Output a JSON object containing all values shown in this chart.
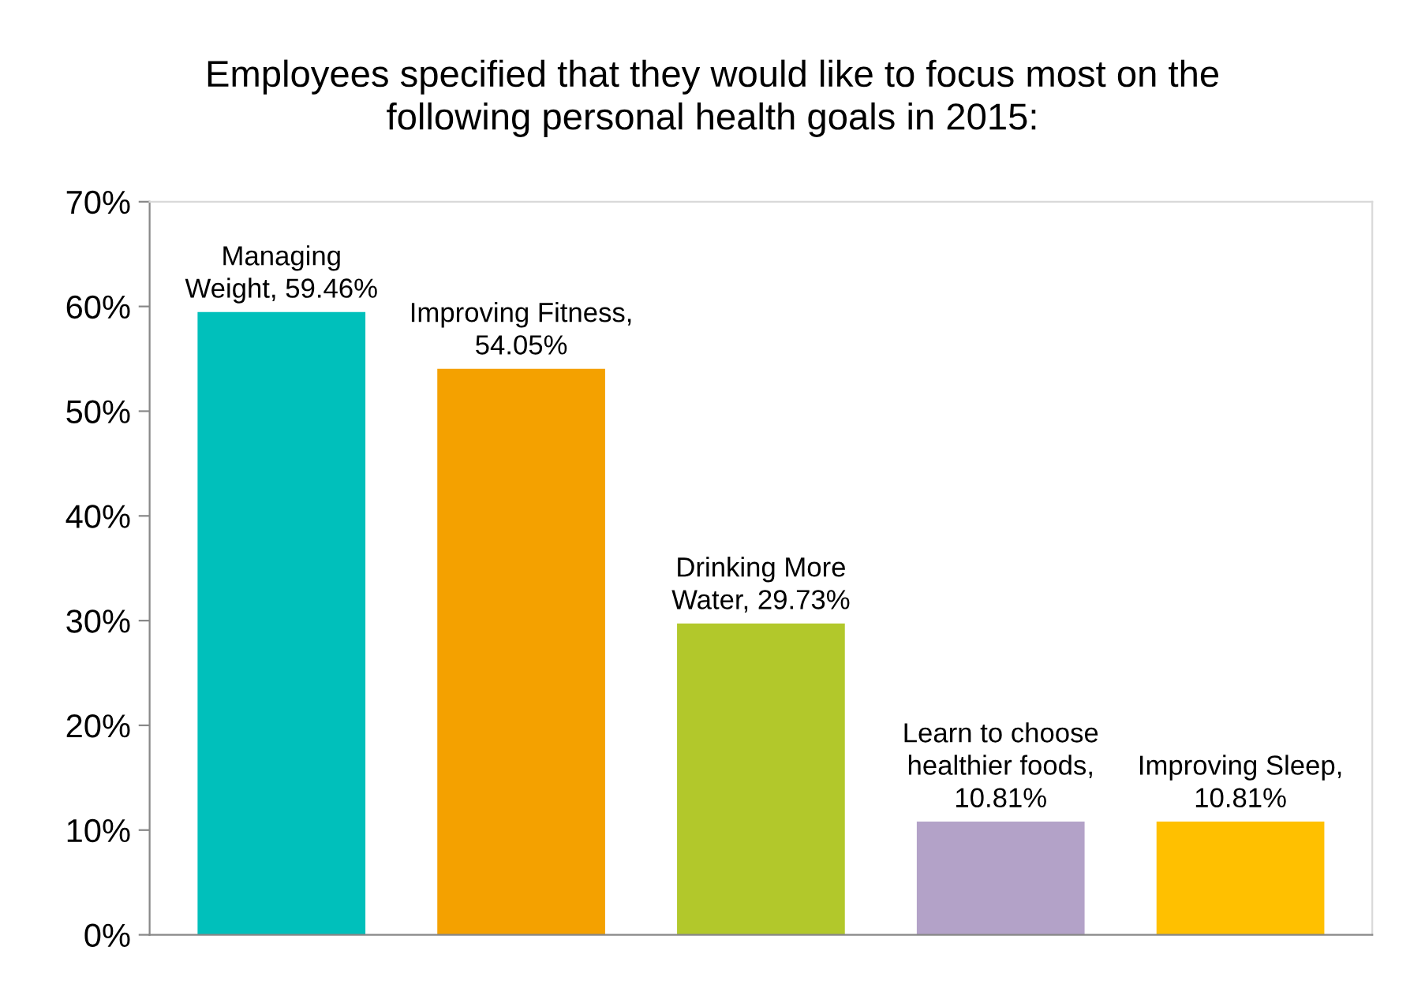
{
  "chart_data": {
    "type": "bar",
    "title": "Employees specified that they would like to focus most on the\nfollowing personal health goals in 2015:",
    "categories": [
      null,
      null,
      null,
      null,
      null
    ],
    "values": [
      59.46,
      54.05,
      29.73,
      10.81,
      10.81
    ],
    "colors": [
      "#00c0bb",
      "#f4a100",
      "#b2c82b",
      "#b3a2c8",
      "#ffc000"
    ],
    "value_labels": [
      "Managing\nWeight, 59.46%",
      "Improving Fitness,\n54.05%",
      "Drinking More\nWater, 29.73%",
      "Learn to choose\nhealthier foods,\n10.81%",
      "Improving Sleep,\n10.81%"
    ],
    "ylim": [
      0,
      70
    ],
    "yticks": [
      {
        "value": 0,
        "label": "0%"
      },
      {
        "value": 10,
        "label": "10%"
      },
      {
        "value": 20,
        "label": "20%"
      },
      {
        "value": 30,
        "label": "30%"
      },
      {
        "value": 40,
        "label": "40%"
      },
      {
        "value": 50,
        "label": "50%"
      },
      {
        "value": 60,
        "label": "60%"
      },
      {
        "value": 70,
        "label": "70%"
      }
    ],
    "grid": false,
    "legend": false
  }
}
